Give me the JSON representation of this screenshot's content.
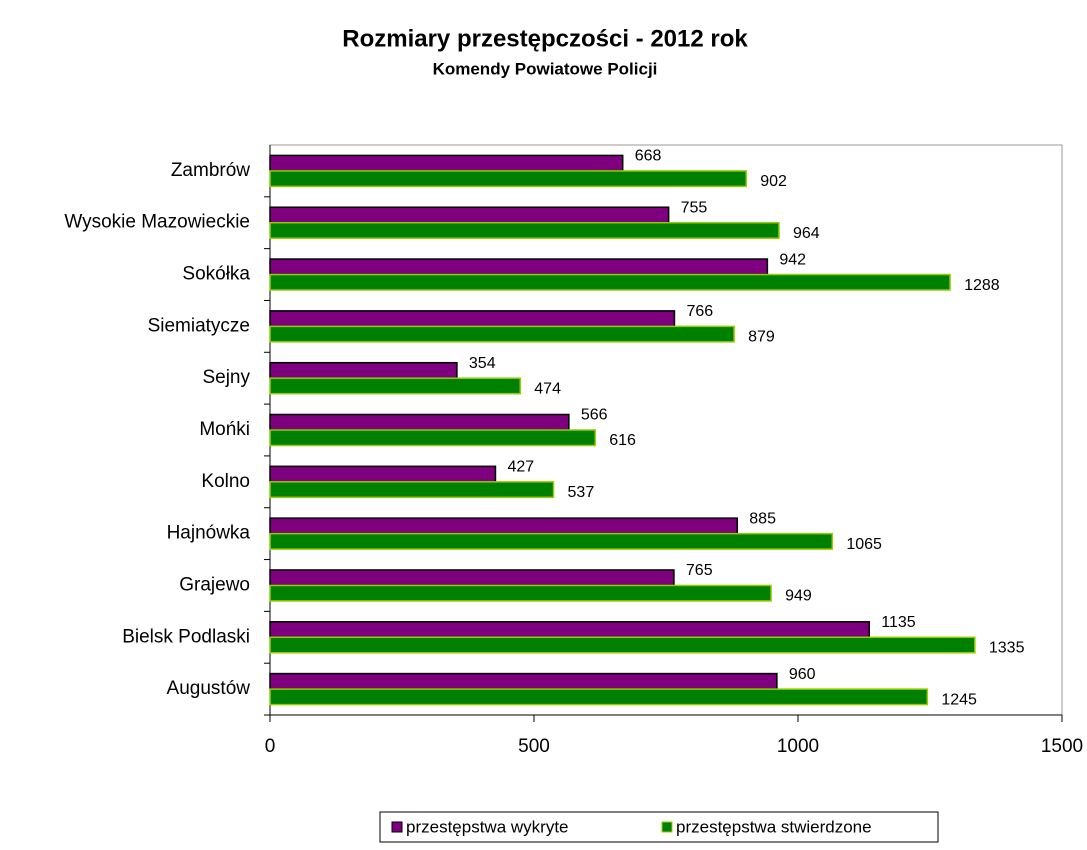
{
  "chart_data": {
    "type": "bar",
    "orientation": "horizontal",
    "title": "Rozmiary przestępczości - 2012 rok",
    "subtitle": "Komendy Powiatowe Policji",
    "categories": [
      "Zambrów",
      "Wysokie Mazowieckie",
      "Sokółka",
      "Siemiatycze",
      "Sejny",
      "Mońki",
      "Kolno",
      "Hajnówka",
      "Grajewo",
      "Bielsk Podlaski",
      "Augustów"
    ],
    "series": [
      {
        "name": "przestępstwa wykryte",
        "color": "#7f007f",
        "values": [
          668,
          755,
          942,
          766,
          354,
          566,
          427,
          885,
          765,
          1135,
          960
        ]
      },
      {
        "name": "przestępstwa stwierdzone",
        "color": "#008000",
        "values": [
          902,
          964,
          1288,
          879,
          474,
          616,
          537,
          1065,
          949,
          1335,
          1245
        ]
      }
    ],
    "xlim": [
      0,
      1500
    ],
    "xticks": [
      0,
      500,
      1000,
      1500
    ],
    "legend": "bottom"
  }
}
